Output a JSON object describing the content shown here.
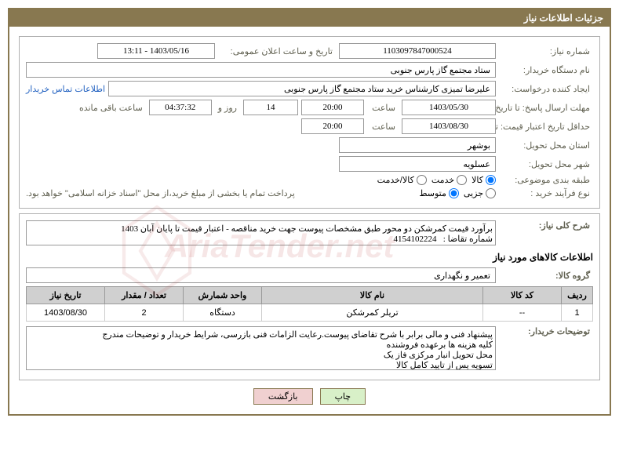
{
  "header": {
    "title": "جزئیات اطلاعات نیاز"
  },
  "form": {
    "needNo_label": "شماره نیاز:",
    "needNo": "1103097847000524",
    "announceDate_label": "تاریخ و ساعت اعلان عمومی:",
    "announceDate": "1403/05/16 - 13:11",
    "buyerOrg_label": "نام دستگاه خریدار:",
    "buyerOrg": "ستاد مجتمع گاز پارس جنوبی",
    "requester_label": "ایجاد کننده درخواست:",
    "requester": "علیرضا تمیزی کارشناس خرید ستاد مجتمع گاز پارس جنوبی",
    "contactLink": "اطلاعات تماس خریدار",
    "deadline_label": "مهلت ارسال پاسخ: تا تاریخ:",
    "deadline_date": "1403/05/30",
    "time_label": "ساعت",
    "deadline_time": "20:00",
    "days": "14",
    "days_label": "روز و",
    "countdown": "04:37:32",
    "remaining_label": "ساعت باقی مانده",
    "validity_label": "حداقل تاریخ اعتبار قیمت: تا تاریخ:",
    "validity_date": "1403/08/30",
    "validity_time": "20:00",
    "province_label": "استان محل تحویل:",
    "province": "بوشهر",
    "city_label": "شهر محل تحویل:",
    "city": "عسلویه",
    "category_label": "طبقه بندی موضوعی:",
    "cat_goods": "کالا",
    "cat_service": "خدمت",
    "cat_both": "کالا/خدمت",
    "process_label": "نوع فرآیند خرید :",
    "proc_partial": "جزیی",
    "proc_medium": "متوسط",
    "payment_note": "پرداخت تمام یا بخشی از مبلغ خرید،از محل \"اسناد خزانه اسلامی\" خواهد بود.",
    "desc_label": "شرح کلی نیاز:",
    "desc": "برآورد قیمت کمرشکن دو محور طبق مشخصات پیوست جهت خرید مناقصه - اعتبار قیمت تا پایان آبان 1403\nشماره تقاضا :   4154102224",
    "goods_section": "اطلاعات کالاهای مورد نیاز",
    "group_label": "گروه کالا:",
    "group": "تعمیر و نگهداری",
    "buyerNotes_label": "توضیحات خریدار:",
    "buyerNotes": "پیشنهاد فنی و مالی برابر با شرح تقاضای پیوست.رعایت الزامات فنی بازرسی، شرایط خریدار و توضیحات مندرج\nکلیه هزینه ها برعهده فروشنده\nمحل تحویل انبار مرکزی فاز یک\nتسویه پس از تایید کامل کالا"
  },
  "table": {
    "headers": {
      "row": "ردیف",
      "code": "کد کالا",
      "name": "نام کالا",
      "unit": "واحد شمارش",
      "qty": "تعداد / مقدار",
      "date": "تاریخ نیاز"
    },
    "rows": [
      {
        "row": "1",
        "code": "--",
        "name": "تریلر کمرشکن",
        "unit": "دستگاه",
        "qty": "2",
        "date": "1403/08/30"
      }
    ]
  },
  "buttons": {
    "print": "چاپ",
    "back": "بازگشت"
  },
  "colors": {
    "panel_border": "#887850",
    "header_bg": "#887850",
    "th_bg": "#d0d0d0"
  }
}
